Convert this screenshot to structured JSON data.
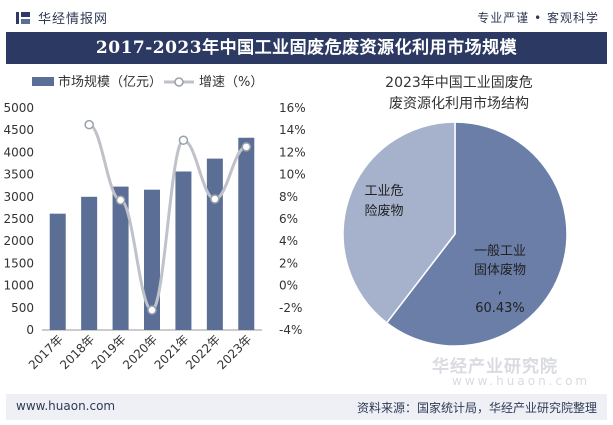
{
  "header": {
    "brand": "华经情报网",
    "slogan": "专业严谨 • 客观科学"
  },
  "title": "2017-2023年中国工业固废危废资源化利用市场规模",
  "chart_data": [
    {
      "type": "bar",
      "categories": [
        "2017年",
        "2018年",
        "2019年",
        "2020年",
        "2021年",
        "2022年",
        "2023年"
      ],
      "series": [
        {
          "name": "市场规模（亿元）",
          "type": "bar",
          "axis": "left",
          "color": "#5b6e96",
          "values": [
            2620,
            3000,
            3230,
            3160,
            3570,
            3860,
            4330
          ]
        },
        {
          "name": "增速（%）",
          "type": "line",
          "axis": "right",
          "color": "#bfc2c9",
          "values": [
            null,
            14.5,
            7.7,
            -2.2,
            13.1,
            7.8,
            12.5
          ]
        }
      ],
      "ylim": [
        0,
        5000
      ],
      "yticks": [
        "0",
        "500",
        "1000",
        "1500",
        "2000",
        "2500",
        "3000",
        "3500",
        "4000",
        "4500",
        "5000"
      ],
      "y2lim": [
        -4,
        16
      ],
      "y2ticks": [
        "-4%",
        "-2%",
        "0%",
        "2%",
        "4%",
        "6%",
        "8%",
        "10%",
        "12%",
        "14%",
        "16%"
      ],
      "legend": "top"
    },
    {
      "type": "pie",
      "title": "2023年中国工业固废危废资源化利用市场结构",
      "slices": [
        {
          "label": "一般工业固体废物,",
          "pct_label": "60.43%",
          "value": 60.43,
          "color": "#6a7ea8"
        },
        {
          "label": "工业危险废物",
          "value": 39.57,
          "color": "#a6b2cc"
        }
      ]
    }
  ],
  "footer": {
    "url": "www.huaon.com",
    "source": "资料来源：国家统计局，华经产业研究院整理"
  },
  "watermark": {
    "text": "华经产业研究院",
    "url": "www.huaon.com"
  }
}
